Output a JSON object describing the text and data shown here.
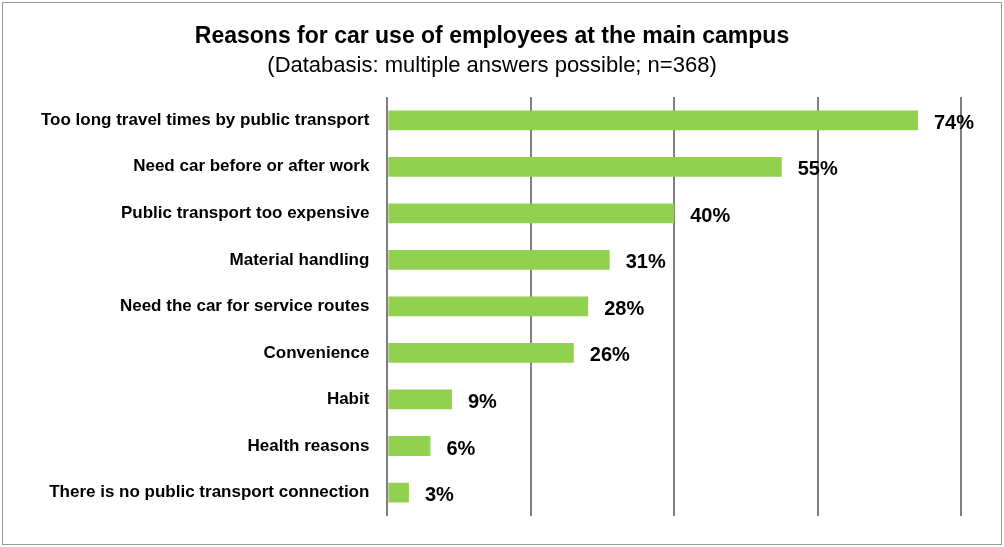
{
  "chart_data": {
    "type": "bar",
    "orientation": "horizontal",
    "title": "Reasons for car use of employees at the main campus",
    "subtitle": "(Databasis: multiple answers possible; n=368)",
    "categories": [
      "Too long travel times by public transport",
      "Need car before or after work",
      "Public transport too expensive",
      "Material handling",
      "Need the car for service routes",
      "Convenience",
      "Habit",
      "Health reasons",
      "There is no public transport connection"
    ],
    "values": [
      74,
      55,
      40,
      31,
      28,
      26,
      9,
      6,
      3
    ],
    "value_labels": [
      "74%",
      "55%",
      "40%",
      "31%",
      "28%",
      "26%",
      "9%",
      "6%",
      "3%"
    ],
    "color": "#92d050",
    "xlim": [
      0,
      80
    ],
    "xticks": [
      {
        "value": 0,
        "label": null
      },
      {
        "value": 20,
        "label": null
      },
      {
        "value": 40,
        "label": null
      },
      {
        "value": 60,
        "label": null
      },
      {
        "value": 80,
        "label": null
      }
    ],
    "grid": "x",
    "tick_labels": "y",
    "legend": false
  }
}
